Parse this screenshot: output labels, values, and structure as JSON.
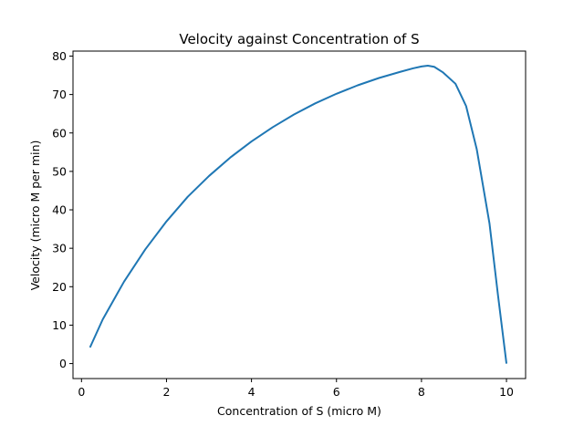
{
  "chart_data": {
    "type": "line",
    "title": "Velocity against Concentration of S",
    "xlabel": "Concentration of S (micro M)",
    "ylabel": "Velocity (micro M per min)",
    "xlim": [
      -0.2,
      10.45
    ],
    "ylim": [
      -3.9,
      81.3
    ],
    "xticks": [
      0,
      2,
      4,
      6,
      8,
      10
    ],
    "yticks": [
      0,
      10,
      20,
      30,
      40,
      50,
      60,
      70,
      80
    ],
    "grid": false,
    "legend": null,
    "color": "#1f77b4",
    "series": [
      {
        "x": [
          0.2,
          0.5,
          1.0,
          1.5,
          2.0,
          2.5,
          3.0,
          3.5,
          4.0,
          4.5,
          5.0,
          5.5,
          6.0,
          6.5,
          7.0,
          7.5,
          7.8,
          8.0,
          8.15,
          8.3,
          8.5,
          8.8,
          9.05,
          9.3,
          9.6,
          9.8,
          10.0
        ],
        "y": [
          4.2,
          11.5,
          21.3,
          29.7,
          37.0,
          43.4,
          48.8,
          53.6,
          57.8,
          61.5,
          64.8,
          67.7,
          70.2,
          72.4,
          74.3,
          75.9,
          76.8,
          77.3,
          77.5,
          77.2,
          75.8,
          72.8,
          67.0,
          55.8,
          36.5,
          17.8,
          0.0
        ]
      }
    ]
  }
}
